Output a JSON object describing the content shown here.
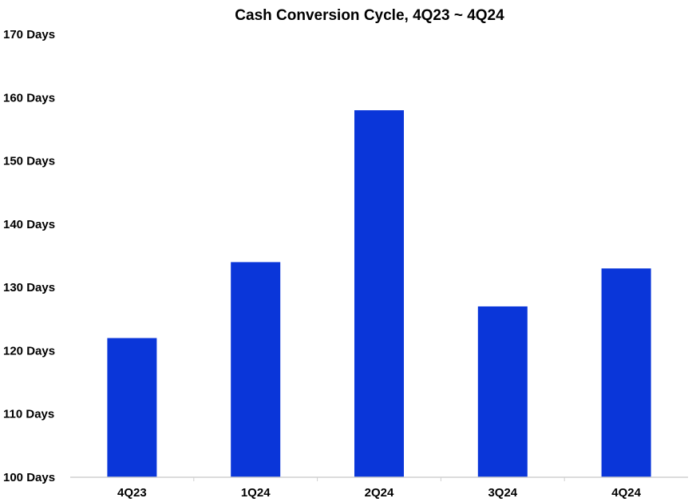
{
  "chart_data": {
    "type": "bar",
    "title": "Cash Conversion Cycle, 4Q23 ~ 4Q24",
    "xlabel": "",
    "ylabel": "",
    "categories": [
      "4Q23",
      "1Q24",
      "2Q24",
      "3Q24",
      "4Q24"
    ],
    "values": [
      122,
      134,
      158,
      127,
      133
    ],
    "ylim": [
      100,
      170
    ],
    "yticks": [
      100,
      110,
      120,
      130,
      140,
      150,
      160,
      170
    ],
    "ytick_labels": [
      "100 Days",
      "110 Days",
      "120 Days",
      "130 Days",
      "140 Days",
      "150 Days",
      "160 Days",
      "170 Days"
    ],
    "grid": false,
    "legend": "none",
    "bar_color": "#0a36d9",
    "axis_color": "#d0d0d0"
  }
}
